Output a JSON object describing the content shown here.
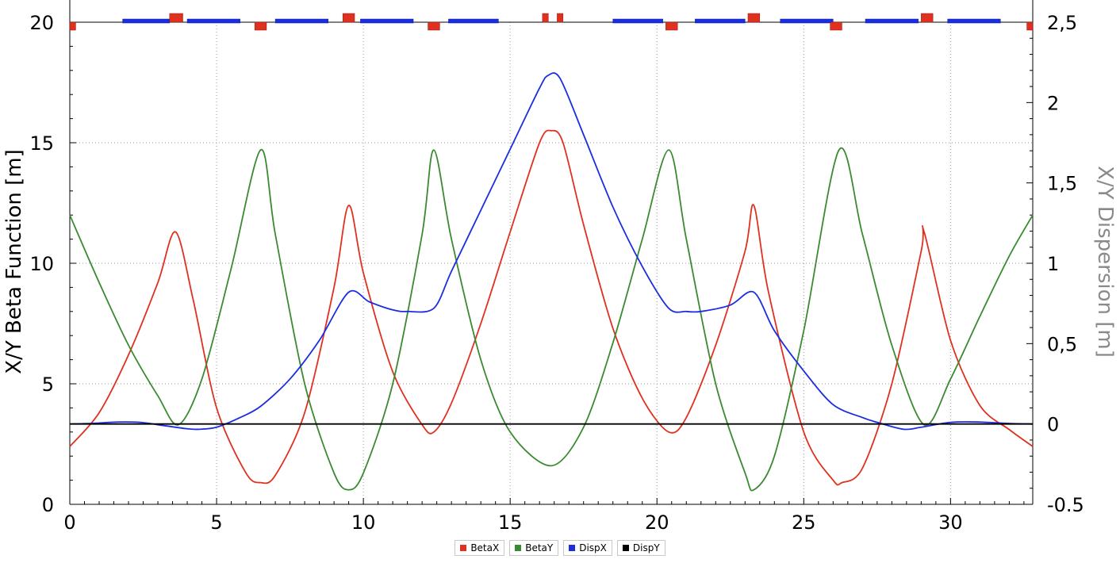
{
  "chart_data": {
    "type": "line",
    "xlim": [
      0,
      32.8
    ],
    "ylim": [
      0,
      20
    ],
    "y2lim": [
      -0.5,
      2.5
    ],
    "xticks": [
      0,
      5,
      10,
      15,
      20,
      25,
      30
    ],
    "yticks": [
      0,
      5,
      10,
      15,
      20
    ],
    "y2ticks": [
      "-0.5",
      "0",
      "0,5",
      "1",
      "1,5",
      "2",
      "2,5"
    ],
    "y2tick_values": [
      -0.5,
      0,
      0.5,
      1,
      1.5,
      2,
      2.5
    ],
    "ylabel": "X/Y Beta Function [m]",
    "y2label": "X/Y Dispersion [m]",
    "grid": true,
    "legend_position": "bottom",
    "series": [
      {
        "name": "BetaX",
        "color": "#e03020",
        "axis": "left",
        "x": [
          0,
          1,
          2,
          3,
          3.6,
          4.2,
          5,
          6,
          6.5,
          7,
          8,
          9,
          9.5,
          10,
          11,
          12,
          12.4,
          13,
          14,
          15,
          16,
          16.4,
          16.8,
          17.5,
          18.5,
          19.5,
          20.4,
          21,
          22,
          23,
          23.3,
          23.8,
          25,
          26,
          26.3,
          27,
          28,
          29,
          29.1,
          30,
          31,
          32,
          32.8
        ],
        "y": [
          2.4,
          3.8,
          6.2,
          9.2,
          11.3,
          8.5,
          4.0,
          1.3,
          0.9,
          1.2,
          3.8,
          9.0,
          12.4,
          9.6,
          5.5,
          3.3,
          3.0,
          4.2,
          7.5,
          11.3,
          15.0,
          15.5,
          15.0,
          11.6,
          7.3,
          4.4,
          3.0,
          3.6,
          6.6,
          10.5,
          12.4,
          8.8,
          3.0,
          1.0,
          0.9,
          1.5,
          5.0,
          10.5,
          11.3,
          6.8,
          4.1,
          3.1,
          2.4
        ]
      },
      {
        "name": "BetaY",
        "color": "#3a8a30",
        "axis": "left",
        "x": [
          0,
          1,
          2,
          3,
          3.7,
          4.5,
          5.5,
          6.5,
          7,
          8,
          9,
          9.5,
          10,
          11,
          12,
          12.4,
          13,
          14,
          15,
          16.4,
          17.5,
          18.5,
          19.5,
          20.4,
          21,
          22,
          23,
          23.3,
          24,
          25,
          26.2,
          27,
          28,
          29.1,
          30,
          31,
          32,
          32.8
        ],
        "y": [
          12.0,
          9.2,
          6.6,
          4.5,
          3.3,
          5.2,
          9.8,
          14.7,
          11.2,
          5.0,
          1.3,
          0.6,
          1.3,
          5.0,
          11.2,
          14.7,
          11.0,
          6.0,
          3.0,
          1.6,
          3.2,
          6.7,
          11.0,
          14.7,
          11.0,
          5.0,
          1.3,
          0.6,
          2.0,
          7.2,
          14.7,
          11.2,
          6.6,
          3.3,
          5.2,
          7.8,
          10.3,
          12.0
        ]
      },
      {
        "name": "DispX",
        "color": "#1a2ee0",
        "axis": "right",
        "x": [
          0,
          0.8,
          1.6,
          2.4,
          3.2,
          4.0,
          4.4,
          5.0,
          5.8,
          6.5,
          7.5,
          8.5,
          9.5,
          10.2,
          11.0,
          11.5,
          12.4,
          13.0,
          14.0,
          15.0,
          16.0,
          16.3,
          16.7,
          17.5,
          18.5,
          19.5,
          20.4,
          21.0,
          21.5,
          22.5,
          23.3,
          24.0,
          25.0,
          26.0,
          27.0,
          27.5,
          28.4,
          29.0,
          30.0,
          31.0,
          32.0,
          32.8
        ],
        "y": [
          0,
          0.004,
          0.012,
          0.01,
          -0.01,
          -0.03,
          -0.033,
          -0.02,
          0.04,
          0.11,
          0.28,
          0.52,
          0.82,
          0.76,
          0.71,
          0.7,
          0.72,
          0.95,
          1.33,
          1.71,
          2.09,
          2.17,
          2.15,
          1.8,
          1.35,
          0.98,
          0.72,
          0.7,
          0.7,
          0.74,
          0.82,
          0.58,
          0.33,
          0.12,
          0.04,
          0.01,
          -0.033,
          -0.02,
          0.01,
          0.012,
          0.003,
          0
        ]
      },
      {
        "name": "DispY",
        "color": "#000000",
        "axis": "right",
        "x": [
          0,
          32.8
        ],
        "y": [
          0,
          0
        ]
      }
    ],
    "lattice": {
      "dipoles": [
        [
          1.8,
          3.4
        ],
        [
          4.0,
          5.8
        ],
        [
          7.0,
          8.8
        ],
        [
          9.9,
          11.7
        ],
        [
          12.9,
          14.6
        ],
        [
          18.5,
          20.2
        ],
        [
          21.3,
          23.0
        ],
        [
          24.2,
          26.0
        ],
        [
          27.1,
          28.9
        ],
        [
          29.9,
          31.7
        ]
      ],
      "quads_up": [
        [
          3.4,
          3.85
        ],
        [
          9.3,
          9.7
        ],
        [
          16.1,
          16.3
        ],
        [
          16.6,
          16.8
        ],
        [
          23.1,
          23.5
        ],
        [
          29.0,
          29.4
        ]
      ],
      "quads_down": [
        [
          0.0,
          0.2
        ],
        [
          6.3,
          6.7
        ],
        [
          12.2,
          12.6
        ],
        [
          20.3,
          20.7
        ],
        [
          25.9,
          26.3
        ],
        [
          32.6,
          32.8
        ]
      ]
    }
  },
  "legend": {
    "items": [
      {
        "label": "BetaX",
        "color": "#e03020"
      },
      {
        "label": "BetaY",
        "color": "#3a8a30"
      },
      {
        "label": "DispX",
        "color": "#1a2ee0"
      },
      {
        "label": "DispY",
        "color": "#000000"
      }
    ]
  }
}
